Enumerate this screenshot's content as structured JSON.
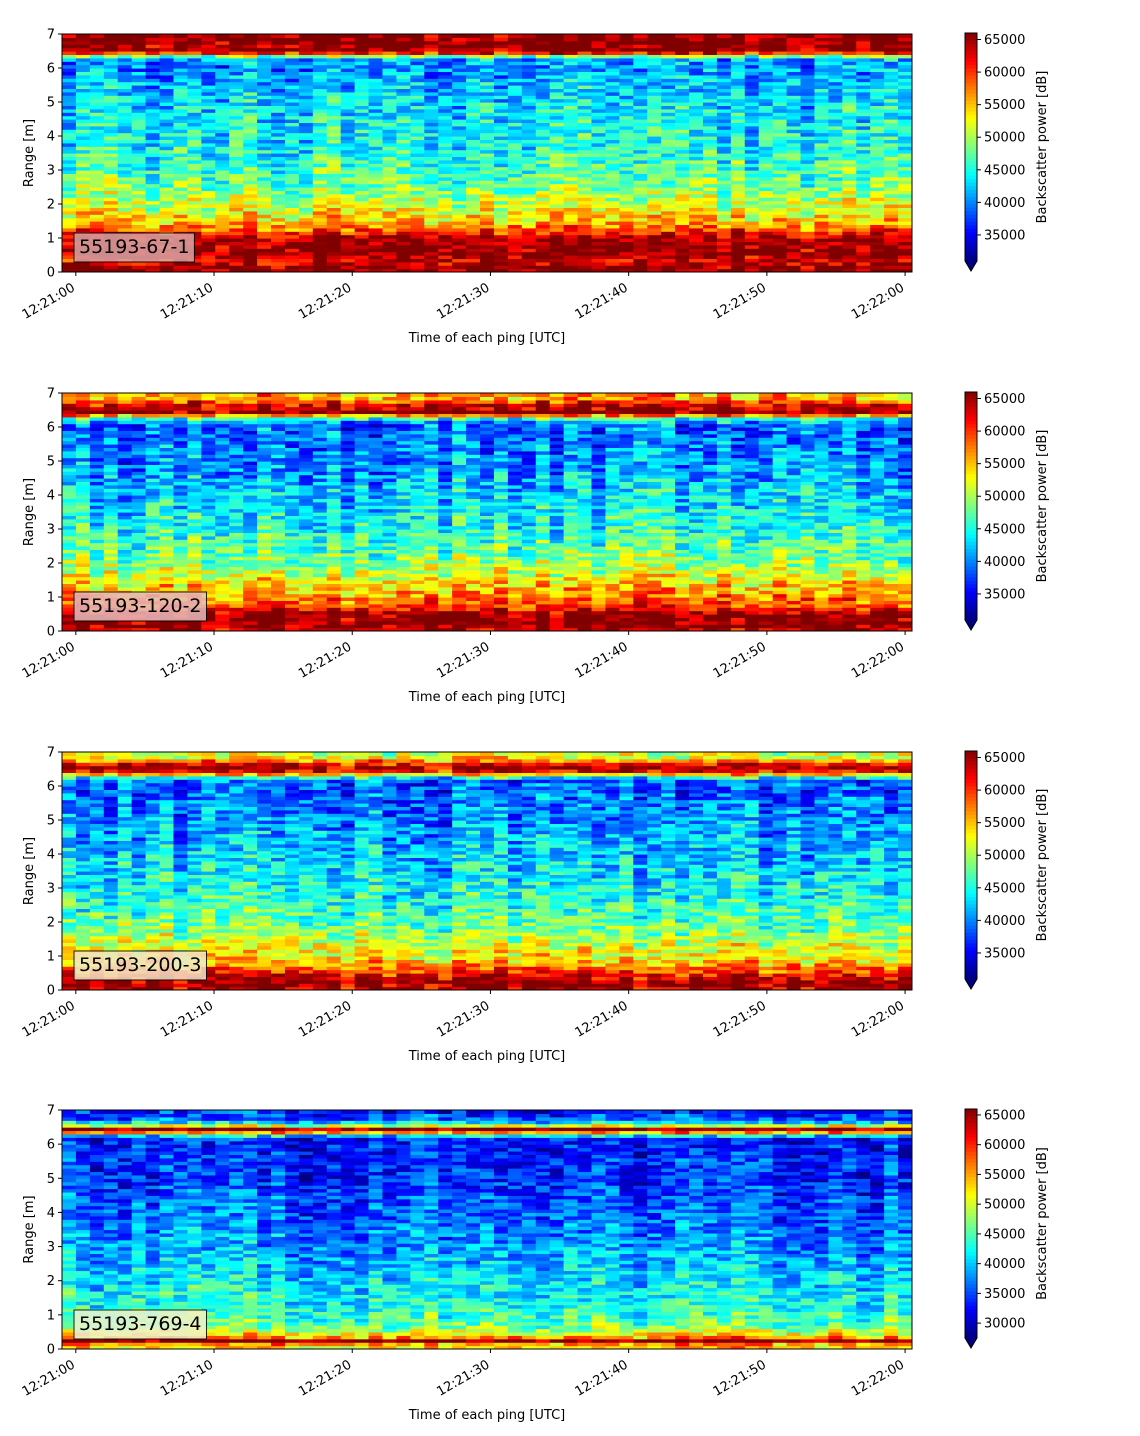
{
  "figure": {
    "xlabel": "Time of each ping [UTC]",
    "ylabel": "Range [m]",
    "colorbar_label": "Backscatter power [dB]",
    "colormap": "jet",
    "colorbar_extend": "min"
  },
  "chart_data": [
    {
      "type": "heatmap",
      "label": "55193-67-1",
      "label_box_color": "#dba5a5",
      "x_ticks": [
        "12:21:00",
        "12:21:10",
        "12:21:20",
        "12:21:30",
        "12:21:40",
        "12:21:50",
        "12:22:00"
      ],
      "xlim_seconds": [
        -1,
        60.5
      ],
      "y_ticks": [
        0,
        1,
        2,
        3,
        4,
        5,
        6,
        7
      ],
      "ylim": [
        0,
        7
      ],
      "colorbar_ticks": [
        35000,
        40000,
        45000,
        50000,
        55000,
        60000,
        65000
      ],
      "clim": [
        31000,
        66000
      ],
      "profile": [
        [
          0,
          66000
        ],
        [
          0.2,
          66000
        ],
        [
          0.3,
          62000
        ],
        [
          0.5,
          66000
        ],
        [
          1.0,
          65000
        ],
        [
          1.2,
          60000
        ],
        [
          1.5,
          55000
        ],
        [
          2.0,
          51000
        ],
        [
          2.6,
          48000
        ],
        [
          3.5,
          45000
        ],
        [
          4.5,
          44000
        ],
        [
          5.5,
          42000
        ],
        [
          6.1,
          40000
        ],
        [
          6.3,
          42000
        ],
        [
          6.4,
          55000
        ],
        [
          6.5,
          66000
        ],
        [
          7.0,
          66000
        ]
      ]
    },
    {
      "type": "heatmap",
      "label": "55193-120-2",
      "label_box_color": "#e7bcbc",
      "x_ticks": [
        "12:21:00",
        "12:21:10",
        "12:21:20",
        "12:21:30",
        "12:21:40",
        "12:21:50",
        "12:22:00"
      ],
      "xlim_seconds": [
        -1,
        60.5
      ],
      "y_ticks": [
        0,
        1,
        2,
        3,
        4,
        5,
        6,
        7
      ],
      "ylim": [
        0,
        7
      ],
      "colorbar_ticks": [
        35000,
        40000,
        45000,
        50000,
        55000,
        60000,
        65000
      ],
      "clim": [
        31000,
        66000
      ],
      "profile": [
        [
          0,
          62000
        ],
        [
          0.15,
          66000
        ],
        [
          0.5,
          66000
        ],
        [
          0.7,
          60000
        ],
        [
          1.0,
          57000
        ],
        [
          1.5,
          53000
        ],
        [
          2.0,
          49000
        ],
        [
          3.0,
          45000
        ],
        [
          4.0,
          43000
        ],
        [
          5.0,
          40000
        ],
        [
          6.1,
          39000
        ],
        [
          6.3,
          48000
        ],
        [
          6.4,
          66000
        ],
        [
          6.7,
          62000
        ],
        [
          6.85,
          56000
        ],
        [
          7.0,
          56000
        ]
      ]
    },
    {
      "type": "heatmap",
      "label": "55193-200-3",
      "label_box_color": "#f2e6c8",
      "x_ticks": [
        "12:21:00",
        "12:21:10",
        "12:21:20",
        "12:21:30",
        "12:21:40",
        "12:21:50",
        "12:22:00"
      ],
      "xlim_seconds": [
        -1,
        60.5
      ],
      "y_ticks": [
        0,
        1,
        2,
        3,
        4,
        5,
        6,
        7
      ],
      "ylim": [
        0,
        7
      ],
      "colorbar_ticks": [
        35000,
        40000,
        45000,
        50000,
        55000,
        60000,
        65000
      ],
      "clim": [
        31000,
        66000
      ],
      "profile": [
        [
          0,
          62000
        ],
        [
          0.2,
          66000
        ],
        [
          0.4,
          63000
        ],
        [
          0.6,
          58000
        ],
        [
          1.0,
          53000
        ],
        [
          1.5,
          50000
        ],
        [
          2.0,
          47000
        ],
        [
          3.0,
          44000
        ],
        [
          4.0,
          42000
        ],
        [
          5.0,
          40000
        ],
        [
          6.2,
          38000
        ],
        [
          6.3,
          50000
        ],
        [
          6.5,
          66000
        ],
        [
          6.7,
          60000
        ],
        [
          6.8,
          53000
        ],
        [
          7.0,
          50000
        ]
      ]
    },
    {
      "type": "heatmap",
      "label": "55193-769-4",
      "label_box_color": "#eef2cf",
      "x_ticks": [
        "12:21:00",
        "12:21:10",
        "12:21:20",
        "12:21:30",
        "12:21:40",
        "12:21:50",
        "12:22:00"
      ],
      "xlim_seconds": [
        -1,
        60.5
      ],
      "y_ticks": [
        0,
        1,
        2,
        3,
        4,
        5,
        6,
        7
      ],
      "ylim": [
        0,
        7
      ],
      "colorbar_ticks": [
        30000,
        35000,
        40000,
        45000,
        50000,
        55000,
        60000,
        65000
      ],
      "clim": [
        27500,
        66000
      ],
      "profile": [
        [
          0,
          52000
        ],
        [
          0.15,
          55000
        ],
        [
          0.25,
          66000
        ],
        [
          0.35,
          56000
        ],
        [
          0.6,
          47000
        ],
        [
          1.0,
          44000
        ],
        [
          2.0,
          41000
        ],
        [
          3.0,
          38000
        ],
        [
          4.0,
          36000
        ],
        [
          5.0,
          34000
        ],
        [
          6.2,
          33000
        ],
        [
          6.35,
          55000
        ],
        [
          6.45,
          66000
        ],
        [
          6.55,
          50000
        ],
        [
          6.7,
          36000
        ],
        [
          7.0,
          33000
        ]
      ]
    }
  ]
}
